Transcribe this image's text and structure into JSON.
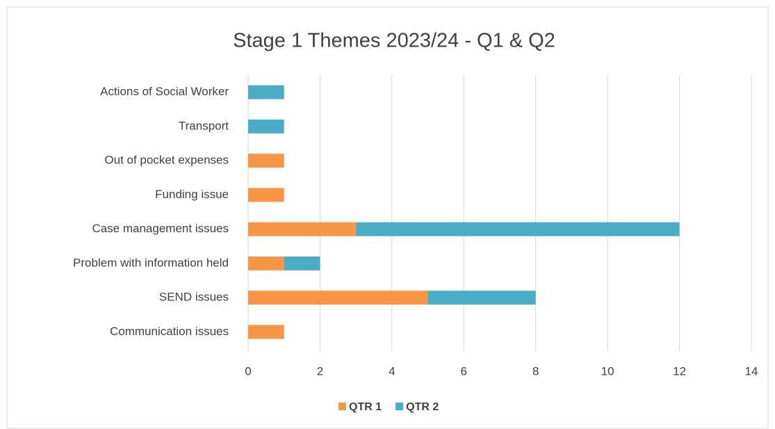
{
  "chart_data": {
    "type": "bar",
    "orientation": "horizontal",
    "stacked": true,
    "title": "Stage 1 Themes 2023/24 - Q1 & Q2",
    "categories": [
      "Actions of Social Worker",
      "Transport",
      "Out of pocket expenses",
      "Funding issue",
      "Case management issues",
      "Problem with information held",
      "SEND issues",
      "Communication issues"
    ],
    "series": [
      {
        "name": "QTR 1",
        "color": "#f79646",
        "values": [
          0,
          0,
          1,
          1,
          3,
          1,
          5,
          1
        ]
      },
      {
        "name": "QTR 2",
        "color": "#4bacc6",
        "values": [
          1,
          1,
          0,
          0,
          9,
          1,
          3,
          0
        ]
      }
    ],
    "xlim": [
      0,
      14
    ],
    "xticks": [
      0,
      2,
      4,
      6,
      8,
      10,
      12,
      14
    ],
    "grid": true,
    "legend": "bottom"
  }
}
